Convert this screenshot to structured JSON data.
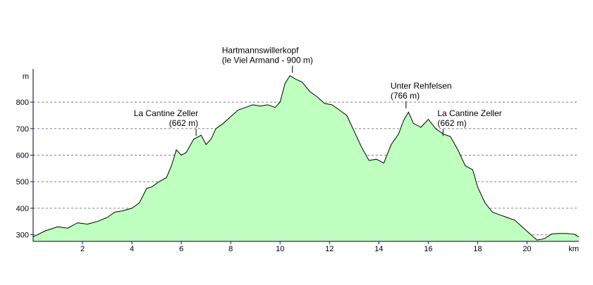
{
  "chart_data": {
    "type": "area",
    "title": "",
    "xlabel": "km",
    "ylabel": "m",
    "xlim": [
      0,
      22.1
    ],
    "ylim": [
      275,
      925
    ],
    "grid": true,
    "fill_color": "#bfffbf",
    "line_color": "#000000",
    "grid_color": "#808080",
    "axis_color": "#0000ff",
    "x_ticks": [
      2,
      4,
      6,
      8,
      10,
      12,
      14,
      16,
      18,
      20
    ],
    "x_tick_labels": [
      "2",
      "4",
      "6",
      "8",
      "10",
      "12",
      "14",
      "16",
      "18",
      "20"
    ],
    "y_ticks": [
      300,
      400,
      500,
      600,
      700,
      800
    ],
    "y_tick_labels": [
      "300",
      "400",
      "500",
      "600",
      "700",
      "800"
    ],
    "x": [
      0,
      0.5,
      1.0,
      1.4,
      1.8,
      2.2,
      2.6,
      3.0,
      3.3,
      3.6,
      4.0,
      4.3,
      4.6,
      4.8,
      5.1,
      5.4,
      5.6,
      5.8,
      6.0,
      6.2,
      6.5,
      6.8,
      7.0,
      7.2,
      7.4,
      7.7,
      8.0,
      8.3,
      8.6,
      8.9,
      9.2,
      9.5,
      9.8,
      10.0,
      10.2,
      10.4,
      10.6,
      10.9,
      11.2,
      11.5,
      11.8,
      12.1,
      12.4,
      12.7,
      13.0,
      13.3,
      13.6,
      13.9,
      14.2,
      14.5,
      14.8,
      15.0,
      15.2,
      15.4,
      15.7,
      16.0,
      16.3,
      16.6,
      16.9,
      17.2,
      17.5,
      17.8,
      18.0,
      18.3,
      18.6,
      18.9,
      19.2,
      19.5,
      19.8,
      20.1,
      20.4,
      20.7,
      21.0,
      21.3,
      21.6,
      21.9,
      22.1
    ],
    "y": [
      292,
      315,
      330,
      325,
      345,
      340,
      350,
      365,
      385,
      390,
      400,
      420,
      475,
      480,
      500,
      515,
      560,
      620,
      600,
      610,
      660,
      675,
      640,
      660,
      700,
      720,
      745,
      770,
      780,
      790,
      785,
      790,
      780,
      800,
      870,
      900,
      888,
      875,
      840,
      820,
      795,
      790,
      770,
      750,
      690,
      630,
      580,
      585,
      570,
      640,
      680,
      730,
      762,
      720,
      705,
      735,
      700,
      680,
      670,
      620,
      560,
      545,
      480,
      420,
      385,
      375,
      365,
      355,
      330,
      305,
      280,
      285,
      303,
      305,
      305,
      302,
      292
    ],
    "annotations": [
      {
        "lines": [
          "La Cantine Zeller",
          "(662 m)"
        ],
        "x": 6.6,
        "y": 662
      },
      {
        "lines": [
          "Hartmannswillerkopf",
          "(le Viel Armand - 900 m)"
        ],
        "x": 10.5,
        "y": 900
      },
      {
        "lines": [
          "Unter Rehfelsen",
          "(766 m)"
        ],
        "x": 15.1,
        "y": 766
      },
      {
        "lines": [
          "La Cantine Zeller",
          "(662 m)"
        ],
        "x": 16.6,
        "y": 662
      }
    ]
  }
}
